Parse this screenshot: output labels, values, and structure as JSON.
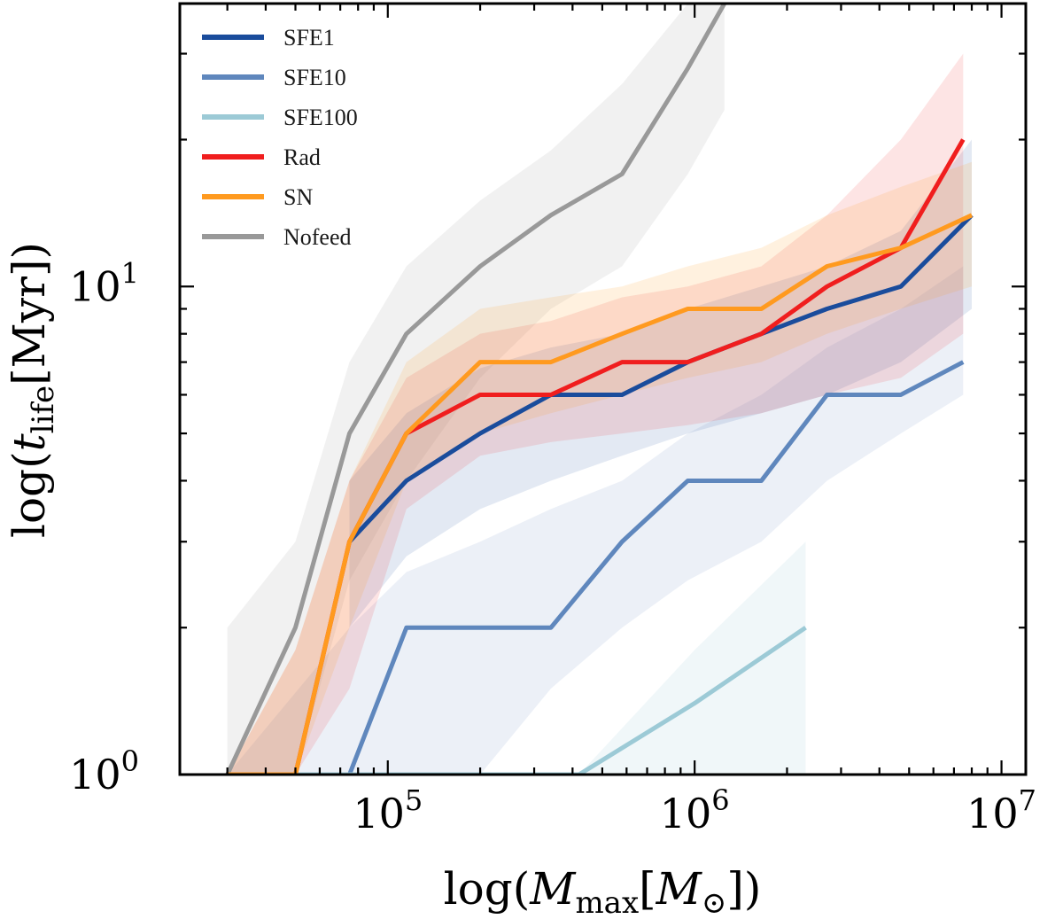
{
  "chart_data": {
    "type": "line",
    "title": "",
    "xlabel": {
      "prefix": "log(",
      "var": "M",
      "sub": "max",
      "bracket_open": "[",
      "unit_var": "M",
      "unit_sub": "⊙",
      "suffix": "])"
    },
    "ylabel": {
      "prefix": "log(",
      "var": "t",
      "sub": "life",
      "unit": "[Myr])"
    },
    "xscale": "log",
    "yscale": "log",
    "xlim": [
      21000,
      12000000
    ],
    "ylim": [
      1.0,
      38.0
    ],
    "x_ticks": [
      {
        "base": "10",
        "exp": "5",
        "value": 100000
      },
      {
        "base": "10",
        "exp": "6",
        "value": 1000000
      },
      {
        "base": "10",
        "exp": "7",
        "value": 10000000
      }
    ],
    "y_ticks": [
      {
        "base": "10",
        "exp": "0",
        "value": 1
      },
      {
        "base": "10",
        "exp": "1",
        "value": 10
      }
    ],
    "legend_position": "top-left",
    "series": [
      {
        "name": "Nofeed",
        "color": "#999999",
        "band_opacity": 0.14,
        "x": [
          30000,
          50000,
          75000,
          115000,
          200000,
          340000,
          580000,
          950000,
          1250000
        ],
        "y": [
          1.0,
          2.0,
          5.0,
          8.0,
          11.0,
          14.0,
          17.0,
          28.0,
          38.0
        ],
        "band_low": [
          1.0,
          1.0,
          2.5,
          4.0,
          6.5,
          9.0,
          11.0,
          17.0,
          23.0
        ],
        "band_high": [
          2.0,
          3.0,
          7.0,
          11.0,
          15.0,
          19.0,
          26.0,
          38.0,
          38.0
        ]
      },
      {
        "name": "SFE1",
        "color": "#1a4c9c",
        "band_opacity": 0.12,
        "x": [
          75000,
          115000,
          200000,
          340000,
          580000,
          950000,
          1650000,
          2700000,
          4700000,
          8000000
        ],
        "y": [
          3.0,
          4.0,
          5.0,
          6.0,
          6.0,
          7.0,
          8.0,
          9.0,
          10.0,
          14.0
        ],
        "band_low": [
          2.0,
          2.8,
          3.5,
          4.0,
          4.5,
          5.0,
          5.5,
          6.0,
          7.0,
          9.0
        ],
        "band_high": [
          4.0,
          5.5,
          6.8,
          7.5,
          8.0,
          9.0,
          10.0,
          11.0,
          13.0,
          20.0
        ]
      },
      {
        "name": "SFE10",
        "color": "#5f87bd",
        "band_opacity": 0.12,
        "x": [
          30000,
          75000,
          115000,
          200000,
          340000,
          580000,
          950000,
          1650000,
          2700000,
          4700000,
          7500000
        ],
        "y": [
          1.0,
          1.0,
          2.0,
          2.0,
          2.0,
          3.0,
          4.0,
          4.0,
          6.0,
          6.0,
          7.0
        ],
        "band_low": [
          1.0,
          1.0,
          1.0,
          1.0,
          1.5,
          2.0,
          2.5,
          3.0,
          4.0,
          5.0,
          6.0
        ],
        "band_high": [
          1.0,
          2.0,
          2.6,
          3.0,
          3.5,
          4.0,
          5.0,
          6.0,
          7.5,
          9.0,
          11.0
        ]
      },
      {
        "name": "SFE100",
        "color": "#9ccad6",
        "band_opacity": 0.15,
        "x": [
          30000,
          200000,
          420000,
          1000000,
          2300000
        ],
        "y": [
          1.0,
          1.0,
          1.0,
          1.4,
          2.0
        ],
        "band_low": [
          1.0,
          1.0,
          1.0,
          1.0,
          1.0
        ],
        "band_high": [
          1.0,
          1.0,
          1.0,
          1.8,
          3.0
        ]
      },
      {
        "name": "Rad",
        "color": "#f01e1e",
        "band_opacity": 0.12,
        "x": [
          30000,
          50000,
          75000,
          115000,
          200000,
          340000,
          580000,
          950000,
          1650000,
          2700000,
          4700000,
          7500000
        ],
        "y": [
          1.0,
          1.0,
          3.0,
          5.0,
          6.0,
          6.0,
          7.0,
          7.0,
          8.0,
          10.0,
          12.0,
          20.0
        ],
        "band_low": [
          1.0,
          1.0,
          1.5,
          3.5,
          4.5,
          4.8,
          5.0,
          5.2,
          5.5,
          6.0,
          6.5,
          8.0
        ],
        "band_high": [
          1.0,
          1.8,
          4.0,
          6.5,
          8.0,
          8.5,
          9.5,
          10.0,
          11.0,
          14.0,
          20.0,
          30.0
        ]
      },
      {
        "name": "SN",
        "color": "#ff9a1f",
        "band_opacity": 0.14,
        "x": [
          30000,
          50000,
          75000,
          115000,
          200000,
          340000,
          580000,
          950000,
          1650000,
          2700000,
          4700000,
          8000000
        ],
        "y": [
          1.0,
          1.0,
          3.0,
          5.0,
          7.0,
          7.0,
          8.0,
          9.0,
          9.0,
          11.0,
          12.0,
          14.0
        ],
        "band_low": [
          1.0,
          1.0,
          2.0,
          4.0,
          5.0,
          5.5,
          6.0,
          6.5,
          7.0,
          8.0,
          9.0,
          10.0
        ],
        "band_high": [
          1.0,
          1.8,
          4.0,
          7.0,
          9.0,
          9.5,
          10.0,
          11.0,
          12.0,
          14.0,
          16.0,
          18.0
        ]
      }
    ],
    "legend_order": [
      "SFE1",
      "SFE10",
      "SFE100",
      "Rad",
      "SN",
      "Nofeed"
    ]
  }
}
